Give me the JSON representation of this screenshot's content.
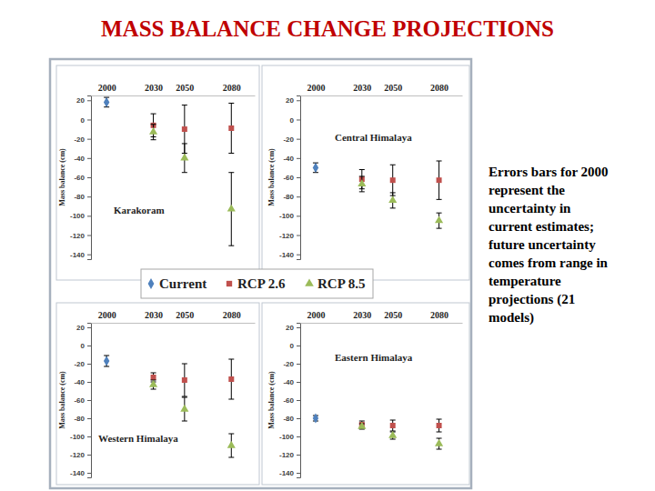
{
  "slide": {
    "title": "MASS BALANCE CHANGE PROJECTIONS",
    "note_lines": [
      "Errors bars for 2000",
      "represent the",
      "uncertainty in",
      "current estimates;",
      "future uncertainty",
      "comes from range in",
      "temperature",
      "projections (21",
      "models)"
    ]
  },
  "chart_data": [
    {
      "type": "scatter",
      "title": "Karakoram",
      "ylabel": "Mass balance (cm)",
      "xlim": [
        1990,
        2095
      ],
      "xticks": [
        2000,
        2030,
        2050,
        2080
      ],
      "ylim": [
        -145,
        25
      ],
      "yticks": [
        20,
        0,
        -20,
        -40,
        -60,
        -80,
        -100,
        -120,
        -140
      ],
      "series": [
        {
          "name": "Current",
          "color": "#4f81bd",
          "marker": "diamond",
          "x": [
            2000
          ],
          "values": [
            18
          ],
          "errors": [
            5
          ]
        },
        {
          "name": "RCP 2.6",
          "color": "#c0504d",
          "marker": "square",
          "x": [
            2030,
            2050,
            2080
          ],
          "values": [
            -6,
            -10,
            -9
          ],
          "errors": [
            12,
            25,
            26
          ]
        },
        {
          "name": "RCP 8.5",
          "color": "#9bbb59",
          "marker": "triangle",
          "x": [
            2030,
            2050,
            2080
          ],
          "values": [
            -13,
            -40,
            -93
          ],
          "errors": [
            8,
            15,
            38
          ]
        }
      ]
    },
    {
      "type": "scatter",
      "title": "Central Himalaya",
      "ylabel": "Mass balance (cm)",
      "xlim": [
        1990,
        2095
      ],
      "xticks": [
        2000,
        2030,
        2050,
        2080
      ],
      "ylim": [
        -145,
        25
      ],
      "yticks": [
        20,
        0,
        -20,
        -40,
        -60,
        -80,
        -100,
        -120,
        -140
      ],
      "series": [
        {
          "name": "Current",
          "color": "#4f81bd",
          "marker": "diamond",
          "x": [
            2000
          ],
          "values": [
            -50
          ],
          "errors": [
            5
          ]
        },
        {
          "name": "RCP 2.6",
          "color": "#c0504d",
          "marker": "square",
          "x": [
            2030,
            2050,
            2080
          ],
          "values": [
            -62,
            -63,
            -63
          ],
          "errors": [
            10,
            16,
            20
          ]
        },
        {
          "name": "RCP 8.5",
          "color": "#9bbb59",
          "marker": "triangle",
          "x": [
            2030,
            2050,
            2080
          ],
          "values": [
            -67,
            -84,
            -105
          ],
          "errors": [
            8,
            8,
            8
          ]
        }
      ]
    },
    {
      "type": "scatter",
      "title": "Western Himalaya",
      "ylabel": "Mass balance (cm)",
      "xlim": [
        1990,
        2095
      ],
      "xticks": [
        2000,
        2030,
        2050,
        2080
      ],
      "ylim": [
        -145,
        25
      ],
      "yticks": [
        20,
        0,
        -20,
        -40,
        -60,
        -80,
        -100,
        -120,
        -140
      ],
      "series": [
        {
          "name": "Current",
          "color": "#4f81bd",
          "marker": "diamond",
          "x": [
            2000
          ],
          "values": [
            -17
          ],
          "errors": [
            6
          ]
        },
        {
          "name": "RCP 2.6",
          "color": "#c0504d",
          "marker": "square",
          "x": [
            2030,
            2050,
            2080
          ],
          "values": [
            -35,
            -38,
            -37
          ],
          "errors": [
            5,
            18,
            22
          ]
        },
        {
          "name": "RCP 8.5",
          "color": "#9bbb59",
          "marker": "triangle",
          "x": [
            2030,
            2050,
            2080
          ],
          "values": [
            -43,
            -70,
            -110
          ],
          "errors": [
            5,
            13,
            13
          ]
        }
      ]
    },
    {
      "type": "scatter",
      "title": "Eastern Himalaya",
      "ylabel": "Mass balance (cm)",
      "xlim": [
        1990,
        2095
      ],
      "xticks": [
        2000,
        2030,
        2050,
        2080
      ],
      "ylim": [
        -145,
        25
      ],
      "yticks": [
        20,
        0,
        -20,
        -40,
        -60,
        -80,
        -100,
        -120,
        -140
      ],
      "series": [
        {
          "name": "Current",
          "color": "#4f81bd",
          "marker": "diamond",
          "x": [
            2000
          ],
          "values": [
            -80
          ],
          "errors": [
            3
          ]
        },
        {
          "name": "RCP 2.6",
          "color": "#c0504d",
          "marker": "square",
          "x": [
            2030,
            2050,
            2080
          ],
          "values": [
            -87,
            -88,
            -88
          ],
          "errors": [
            4,
            6,
            7
          ]
        },
        {
          "name": "RCP 8.5",
          "color": "#9bbb59",
          "marker": "triangle",
          "x": [
            2030,
            2050,
            2080
          ],
          "values": [
            -89,
            -99,
            -108
          ],
          "errors": [
            3,
            4,
            6
          ]
        }
      ]
    }
  ]
}
